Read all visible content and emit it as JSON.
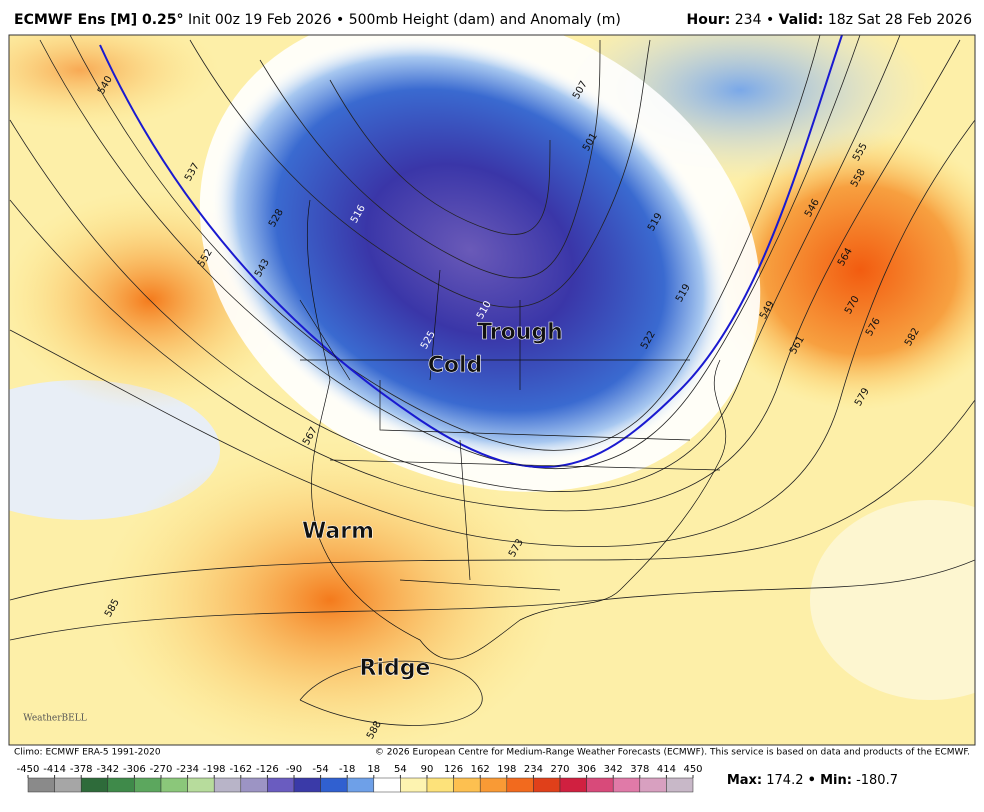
{
  "header": {
    "title_bold": "ECMWF Ens [M] 0.25°",
    "title_rest": "Init 00z 19 Feb 2026 • 500mb Height (dam) and Anomaly (m)",
    "hour_label": "Hour:",
    "hour": "234 •",
    "valid_label": "Valid:",
    "valid": "18z Sat 28 Feb 2026"
  },
  "map": {
    "annotations": [
      "Trough",
      "Cold",
      "Warm",
      "Ridge"
    ],
    "contour_labels": [
      "540",
      "537",
      "552",
      "543",
      "528",
      "516",
      "510",
      "525",
      "567",
      "585",
      "588",
      "573",
      "519",
      "522",
      "501",
      "507",
      "546",
      "555",
      "558",
      "564",
      "570",
      "576",
      "582",
      "579",
      "561",
      "549",
      "519"
    ],
    "logo": "WeatherBELL"
  },
  "footer": {
    "climo": "Climo: ECMWF ERA-5 1991-2020",
    "copyright": "© 2026 European Centre for Medium-Range Weather Forecasts (ECMWF). This service is based on data and products of the ECMWF."
  },
  "colorbar": {
    "ticks": [
      -450,
      -414,
      -378,
      -342,
      -306,
      -270,
      -234,
      -198,
      -162,
      -126,
      -90,
      -54,
      -18,
      18,
      54,
      90,
      126,
      162,
      198,
      234,
      270,
      306,
      342,
      378,
      414,
      450
    ],
    "colors": [
      "#8a8a8a",
      "#a6a6a6",
      "#2e6b3a",
      "#3f8a4a",
      "#5ca75e",
      "#8bc77a",
      "#b7dc9c",
      "#b8b4c8",
      "#9c94c4",
      "#6a5cc0",
      "#3a3aa8",
      "#3060d0",
      "#6ea0e8",
      "#ffffff",
      "#fdf3b0",
      "#fde27a",
      "#fdc050",
      "#f99a35",
      "#f26a1e",
      "#e0401a",
      "#d02040",
      "#d84a7a",
      "#e07aa8",
      "#d8a0c0",
      "#c8b8c8"
    ]
  },
  "stats": {
    "max_label": "Max:",
    "max": 174.2,
    "sep": "•",
    "min_label": "Min:",
    "min": -180.7
  }
}
